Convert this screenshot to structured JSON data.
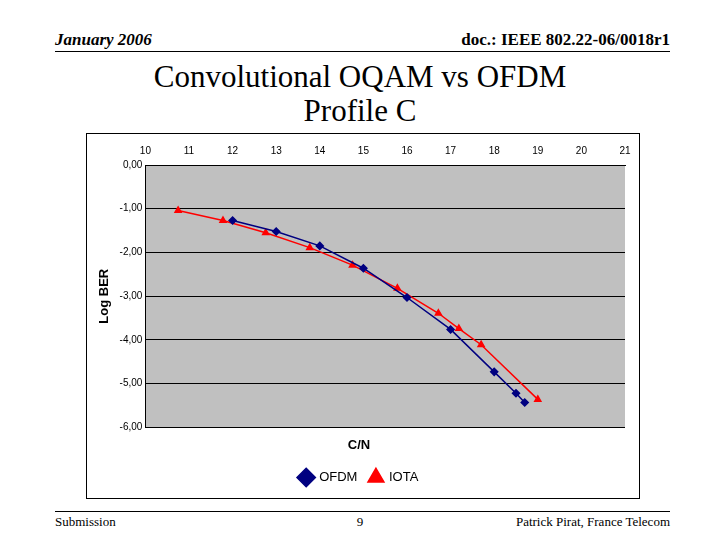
{
  "header": {
    "date": "January 2006",
    "doc": "doc.: IEEE 802.22-06/0018r1"
  },
  "title_lines": [
    "Convolutional OQAM vs OFDM",
    "Profile C"
  ],
  "footer": {
    "left": "Submission",
    "page": "9",
    "right": "Patrick Pirat, France Telecom"
  },
  "chart_data": {
    "type": "line",
    "x_label": "C/N",
    "y_label": "Log BER",
    "xlim": [
      10,
      21
    ],
    "xticks": [
      10,
      11,
      12,
      13,
      14,
      15,
      16,
      17,
      18,
      19,
      20,
      21
    ],
    "ylim": [
      -6,
      0
    ],
    "yticks": [
      {
        "value": -6,
        "label": "-6,00"
      },
      {
        "value": -5,
        "label": "-5,00"
      },
      {
        "value": -4,
        "label": "-4,00"
      },
      {
        "value": -3,
        "label": "-3,00"
      },
      {
        "value": -2,
        "label": "-2,00"
      },
      {
        "value": -1,
        "label": "-1,00"
      },
      {
        "value": 0,
        "label": "0,00"
      }
    ],
    "grid": true,
    "legend": "bottom",
    "series": [
      {
        "name": "OFDM",
        "color": "#000080",
        "marker": "diamond",
        "line_style": "solid",
        "x": [
          12.0,
          13.0,
          14.0,
          15.0,
          16.0,
          17.0,
          18.0,
          18.5,
          18.7
        ],
        "values": [
          -1.27,
          -1.52,
          -1.85,
          -2.36,
          -3.03,
          -3.76,
          -4.73,
          -5.22,
          -5.43
        ]
      },
      {
        "name": "IOTA",
        "color": "#ff0000",
        "marker": "triangle",
        "line_style": "solid",
        "x": [
          10.75,
          11.78,
          12.76,
          13.77,
          14.75,
          15.78,
          16.72,
          17.19,
          17.7,
          19.0
        ],
        "values": [
          -1.04,
          -1.27,
          -1.55,
          -1.89,
          -2.29,
          -2.82,
          -3.39,
          -3.74,
          -4.11,
          -5.36
        ]
      }
    ]
  }
}
